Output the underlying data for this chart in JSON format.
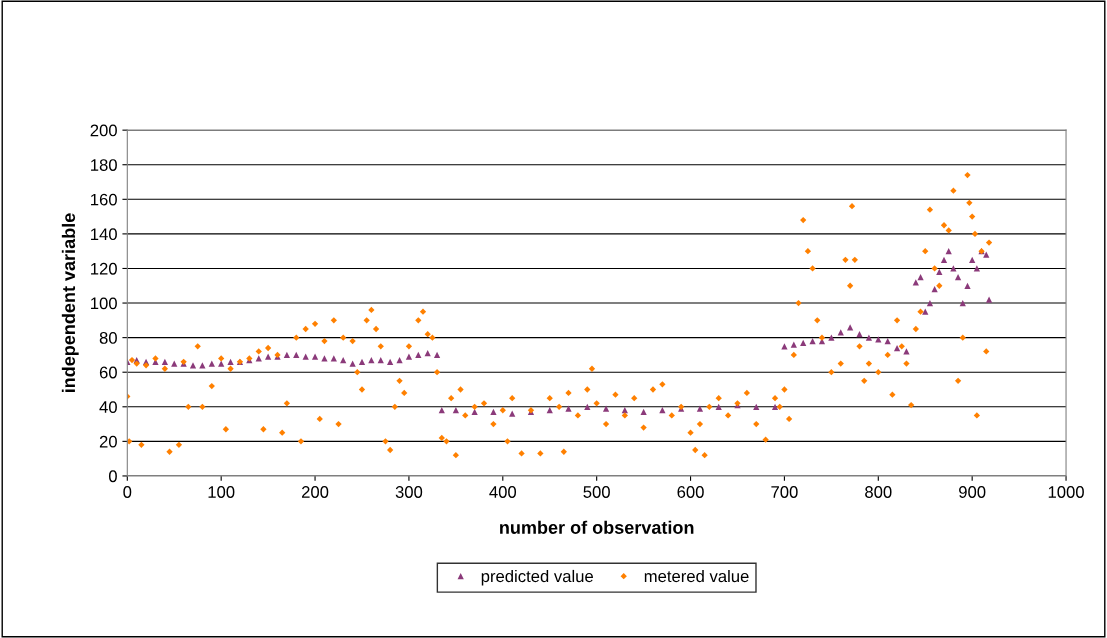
{
  "chart_data": {
    "type": "scatter",
    "xlabel": "number of observation",
    "ylabel": "independent variable",
    "xlim": [
      0,
      1000
    ],
    "xticks": [
      0,
      100,
      200,
      300,
      400,
      500,
      600,
      700,
      800,
      900,
      1000
    ],
    "ylim": [
      0,
      200
    ],
    "yticks": [
      0,
      20,
      40,
      60,
      80,
      100,
      120,
      140,
      160,
      180,
      200
    ],
    "grid": "y",
    "legend": "bottom",
    "series": [
      {
        "name": "predicted value",
        "color": "#8b3a7a",
        "marker": "triangle",
        "x": [
          0,
          10,
          20,
          30,
          40,
          50,
          60,
          70,
          80,
          90,
          100,
          110,
          120,
          130,
          140,
          150,
          160,
          170,
          180,
          190,
          200,
          210,
          220,
          230,
          240,
          250,
          260,
          270,
          280,
          290,
          300,
          310,
          320,
          330,
          335,
          350,
          370,
          390,
          410,
          430,
          450,
          470,
          490,
          510,
          530,
          550,
          570,
          590,
          610,
          630,
          650,
          670,
          690,
          700,
          710,
          720,
          730,
          740,
          750,
          760,
          770,
          780,
          790,
          800,
          810,
          820,
          830,
          840,
          845,
          850,
          855,
          860,
          865,
          870,
          875,
          880,
          885,
          890,
          895,
          900,
          905,
          910,
          915,
          918
        ],
        "values": [
          66,
          67,
          66,
          66,
          66,
          65,
          65,
          64,
          64,
          65,
          65,
          66,
          66,
          67,
          68,
          69,
          69,
          70,
          70,
          69,
          69,
          68,
          68,
          67,
          65,
          66,
          67,
          67,
          66,
          67,
          69,
          70,
          71,
          70,
          38,
          38,
          37,
          37,
          36,
          37,
          38,
          39,
          40,
          39,
          38,
          37,
          38,
          39,
          39,
          40,
          41,
          40,
          40,
          75,
          76,
          77,
          78,
          78,
          80,
          83,
          86,
          82,
          80,
          79,
          78,
          74,
          72,
          112,
          115,
          95,
          100,
          108,
          118,
          125,
          130,
          120,
          115,
          100,
          110,
          125,
          120,
          130,
          128,
          102
        ]
      },
      {
        "name": "metered value",
        "color": "#ff8000",
        "marker": "diamond",
        "x": [
          0,
          2,
          5,
          10,
          15,
          20,
          30,
          40,
          45,
          55,
          60,
          65,
          75,
          80,
          90,
          100,
          105,
          110,
          120,
          130,
          140,
          145,
          150,
          160,
          165,
          170,
          180,
          185,
          190,
          200,
          205,
          210,
          220,
          225,
          230,
          240,
          245,
          250,
          255,
          260,
          265,
          270,
          275,
          280,
          285,
          290,
          295,
          300,
          310,
          315,
          320,
          325,
          330,
          335,
          340,
          345,
          350,
          355,
          360,
          370,
          380,
          390,
          400,
          405,
          410,
          420,
          430,
          440,
          450,
          460,
          465,
          470,
          480,
          490,
          495,
          500,
          510,
          520,
          530,
          540,
          550,
          560,
          570,
          580,
          590,
          600,
          605,
          610,
          615,
          620,
          630,
          640,
          650,
          660,
          670,
          680,
          690,
          695,
          700,
          705,
          710,
          715,
          720,
          725,
          730,
          735,
          740,
          750,
          760,
          765,
          770,
          772,
          775,
          780,
          785,
          790,
          800,
          810,
          815,
          820,
          825,
          830,
          835,
          840,
          845,
          850,
          855,
          860,
          865,
          870,
          875,
          880,
          885,
          890,
          895,
          897,
          900,
          903,
          905,
          910,
          915,
          918
        ],
        "values": [
          46,
          20,
          67,
          65,
          18,
          64,
          68,
          62,
          14,
          18,
          66,
          40,
          75,
          40,
          52,
          68,
          27,
          62,
          66,
          68,
          72,
          27,
          74,
          70,
          25,
          42,
          80,
          20,
          85,
          88,
          33,
          78,
          90,
          30,
          80,
          78,
          60,
          50,
          90,
          96,
          85,
          75,
          20,
          15,
          40,
          55,
          48,
          75,
          90,
          95,
          82,
          80,
          60,
          22,
          20,
          45,
          12,
          50,
          35,
          40,
          42,
          30,
          38,
          20,
          45,
          13,
          38,
          13,
          45,
          40,
          14,
          48,
          35,
          50,
          62,
          42,
          30,
          47,
          35,
          45,
          28,
          50,
          53,
          35,
          40,
          25,
          15,
          30,
          12,
          40,
          45,
          35,
          42,
          48,
          30,
          21,
          45,
          40,
          50,
          33,
          70,
          100,
          148,
          130,
          120,
          90,
          80,
          60,
          65,
          125,
          110,
          156,
          125,
          75,
          55,
          65,
          60,
          70,
          47,
          90,
          75,
          65,
          41,
          85,
          95,
          130,
          154,
          120,
          110,
          145,
          142,
          165,
          55,
          80,
          174,
          158,
          150,
          140,
          35,
          130,
          72,
          135
        ]
      }
    ]
  }
}
